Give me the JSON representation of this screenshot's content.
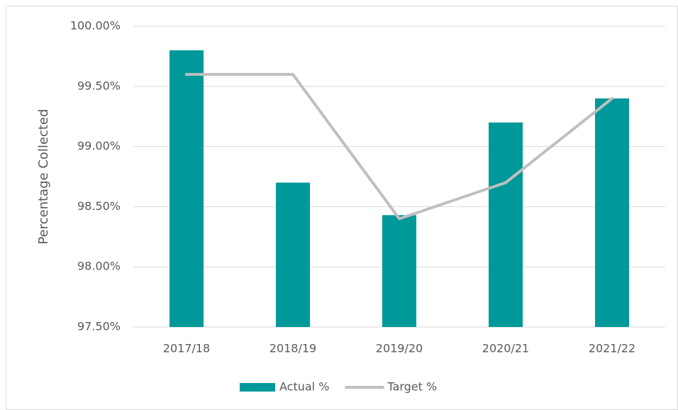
{
  "chart_data": {
    "type": "bar",
    "ylabel": "Percentage Collected",
    "categories": [
      "2017/18",
      "2018/19",
      "2019/20",
      "2020/21",
      "2021/22"
    ],
    "series": [
      {
        "name": "Actual %",
        "type": "bar",
        "color": "#009999",
        "values": [
          99.8,
          98.7,
          98.43,
          99.2,
          99.4
        ]
      },
      {
        "name": "Target %",
        "type": "line",
        "color": "#bfbfbf",
        "values": [
          99.6,
          99.6,
          98.4,
          98.7,
          99.4
        ]
      }
    ],
    "ylim": [
      97.5,
      100
    ],
    "yticks": [
      {
        "value": 97.5,
        "label": "97.50%"
      },
      {
        "value": 98,
        "label": "98.00%"
      },
      {
        "value": 98.5,
        "label": "98.50%"
      },
      {
        "value": 99,
        "label": "99.00%"
      },
      {
        "value": 99.5,
        "label": "99.50%"
      },
      {
        "value": 100,
        "label": "100.00%"
      }
    ],
    "grid": true,
    "legend": "bottom"
  }
}
